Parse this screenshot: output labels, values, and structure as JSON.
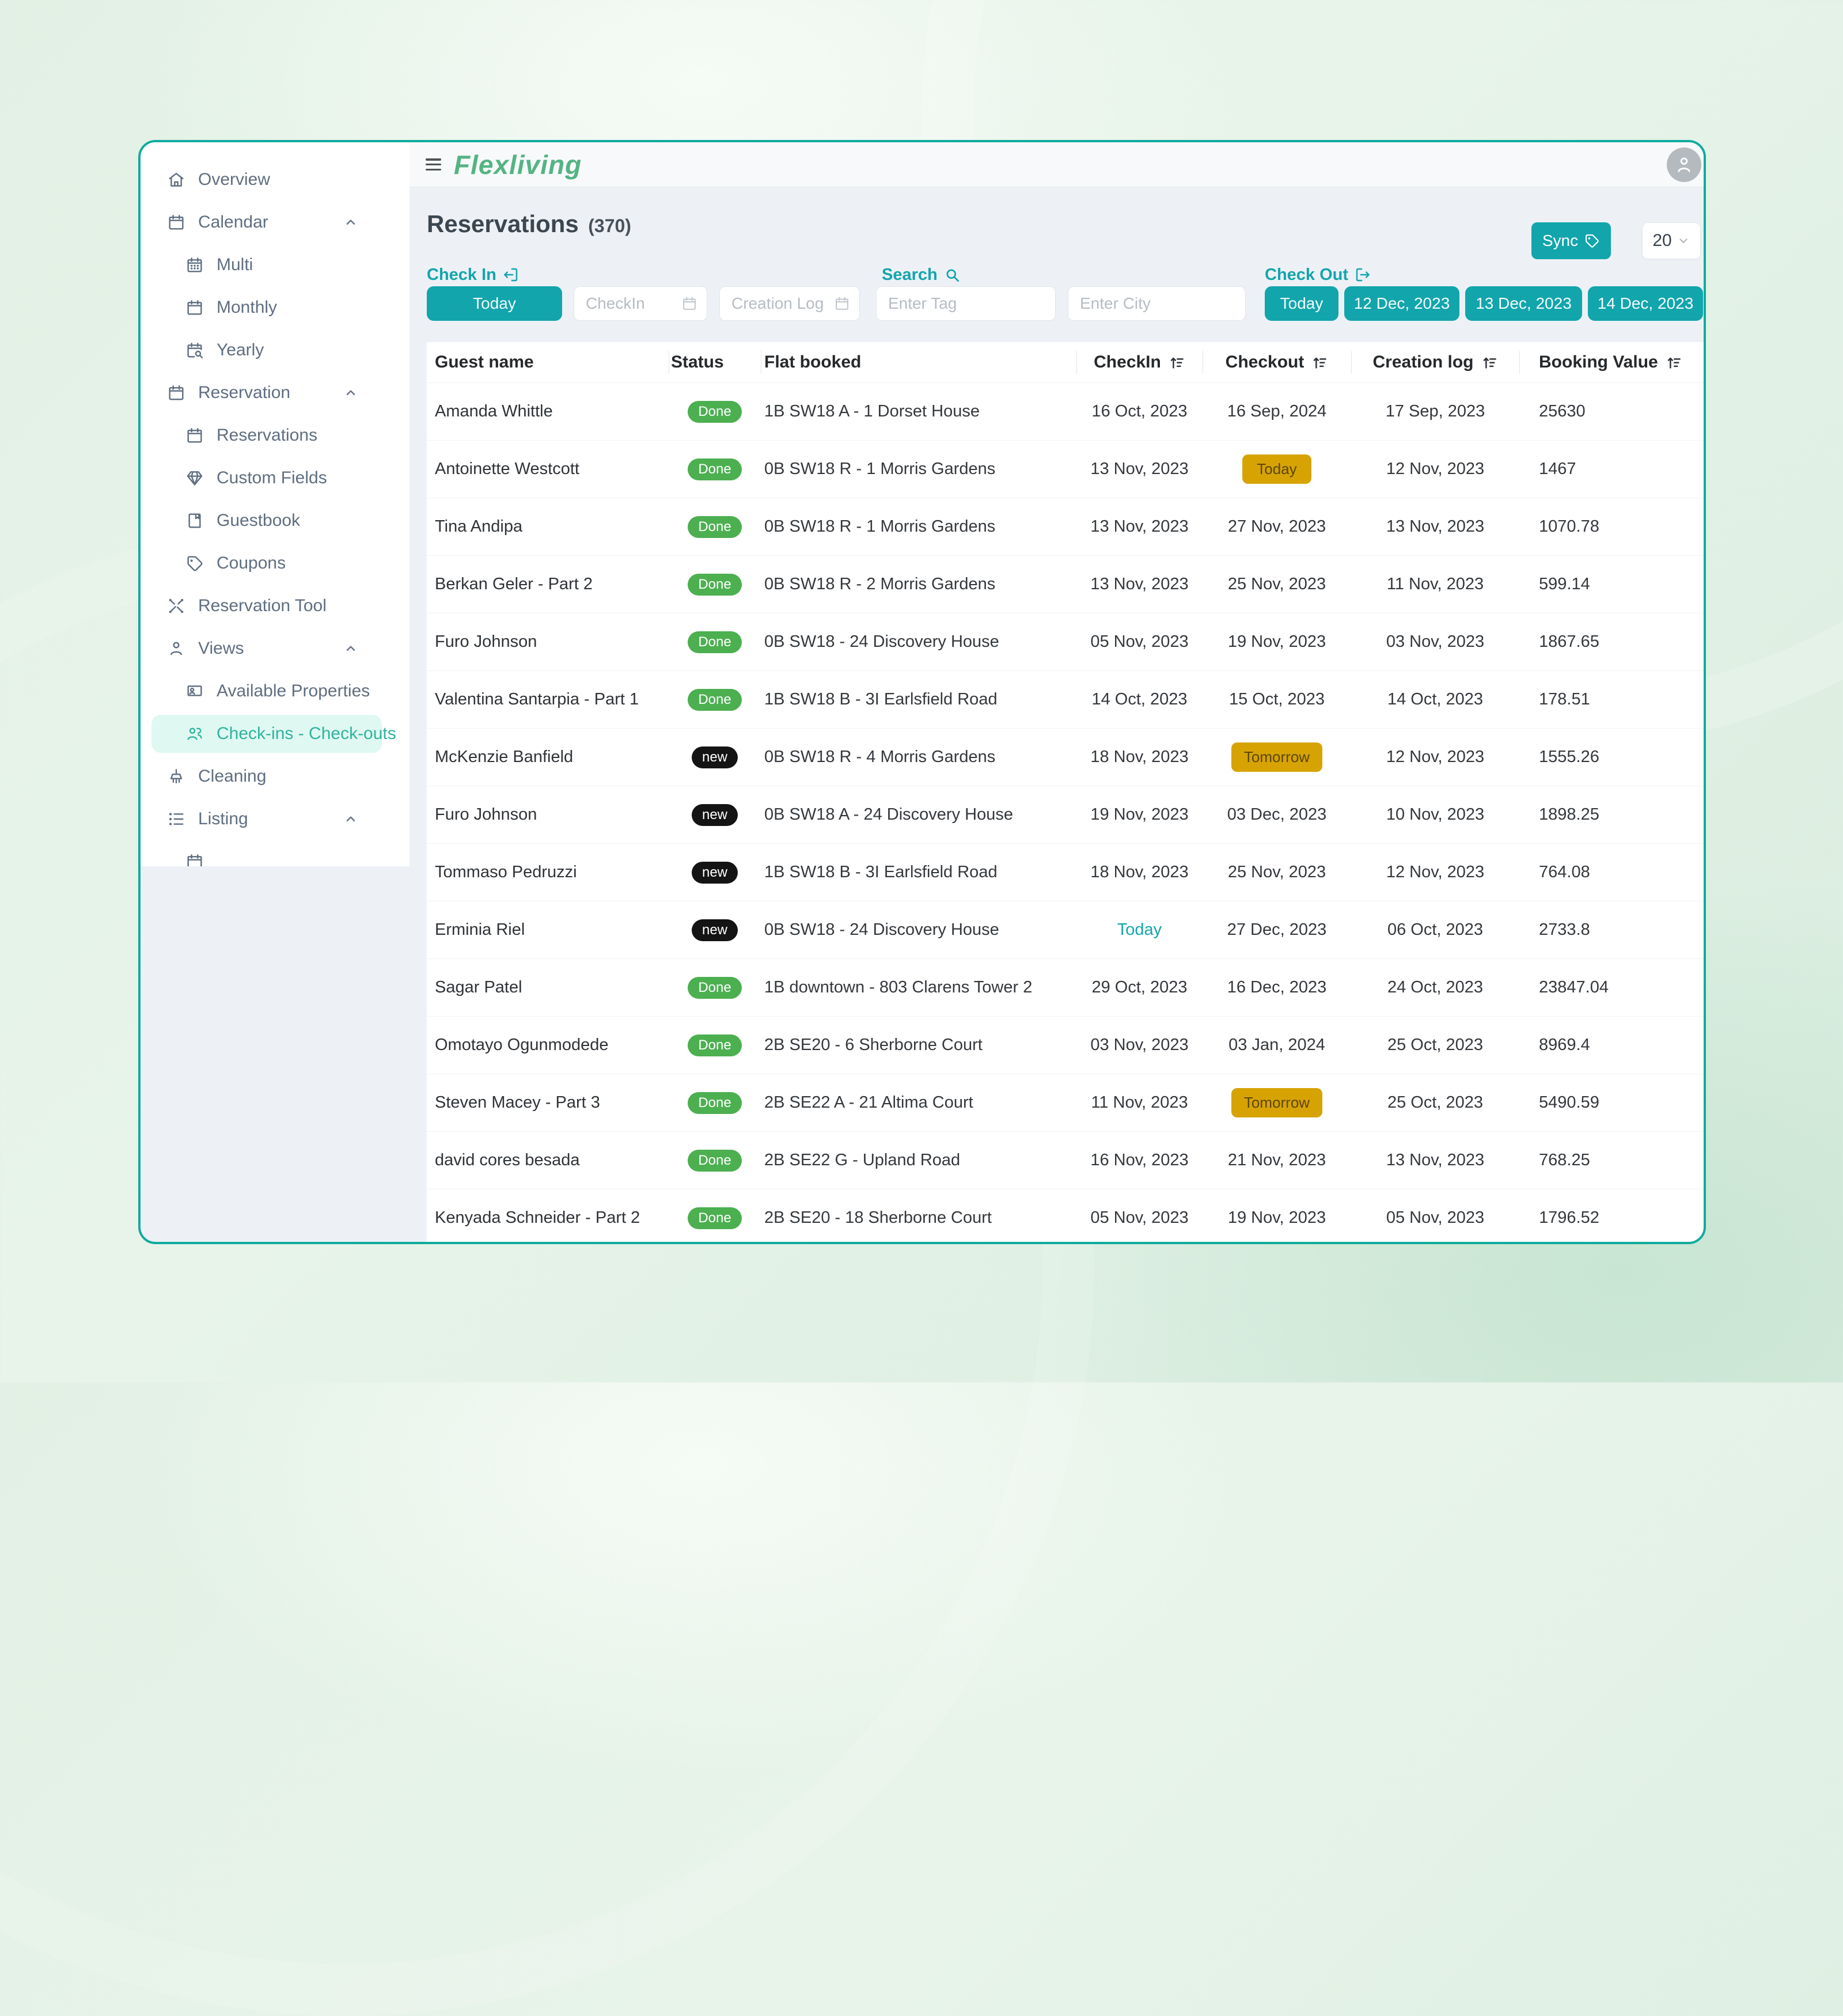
{
  "colors": {
    "accent_teal": "#12a5ac",
    "panel_border_teal": "#10ab9e",
    "logo_green": "#53b483",
    "status_done_green": "#4caf50",
    "status_new_black": "#141414",
    "badge_gold": "#d7a303",
    "active_item_bg": "#e0f8f2"
  },
  "header": {
    "logo": "Flexliving",
    "menu_icon": "hamburger-icon",
    "avatar_icon": "person-icon"
  },
  "sidebar": {
    "items": [
      {
        "label": "Overview",
        "icon": "home",
        "level": 0,
        "chevron": false,
        "active": false
      },
      {
        "label": "Calendar",
        "icon": "calendar",
        "level": 0,
        "chevron": true,
        "active": false
      },
      {
        "label": "Multi",
        "icon": "calendar-multi",
        "level": 1,
        "chevron": false,
        "active": false
      },
      {
        "label": "Monthly",
        "icon": "calendar",
        "level": 1,
        "chevron": false,
        "active": false
      },
      {
        "label": "Yearly",
        "icon": "calendar-search",
        "level": 1,
        "chevron": false,
        "active": false
      },
      {
        "label": "Reservation",
        "icon": "calendar",
        "level": 0,
        "chevron": true,
        "active": false
      },
      {
        "label": "Reservations",
        "icon": "calendar",
        "level": 1,
        "chevron": false,
        "active": false
      },
      {
        "label": "Custom Fields",
        "icon": "gem",
        "level": 1,
        "chevron": false,
        "active": false
      },
      {
        "label": "Guestbook",
        "icon": "book",
        "level": 1,
        "chevron": false,
        "active": false
      },
      {
        "label": "Coupons",
        "icon": "tag",
        "level": 1,
        "chevron": false,
        "active": false
      },
      {
        "label": "Reservation Tool",
        "icon": "tools",
        "level": 0,
        "chevron": false,
        "active": false
      },
      {
        "label": "Views",
        "icon": "user",
        "level": 0,
        "chevron": true,
        "active": false
      },
      {
        "label": "Available Properties",
        "icon": "id-card",
        "level": 1,
        "chevron": false,
        "active": false
      },
      {
        "label": "Check-ins - Check-outs",
        "icon": "users",
        "level": 1,
        "chevron": false,
        "active": true
      },
      {
        "label": "Cleaning",
        "icon": "brush",
        "level": 0,
        "chevron": false,
        "active": false
      },
      {
        "label": "Listing",
        "icon": "list",
        "level": 0,
        "chevron": true,
        "active": false
      },
      {
        "label": "",
        "icon": "calendar",
        "level": 1,
        "chevron": false,
        "active": false
      }
    ]
  },
  "toolbar": {
    "title": "Reservations",
    "count": "(370)",
    "sync_label": "Sync",
    "page_size": "20"
  },
  "filters": {
    "checkin": {
      "label": "Check In",
      "today_button": "Today",
      "checkin_placeholder": "CheckIn",
      "creation_placeholder": "Creation Log"
    },
    "search": {
      "label": "Search",
      "tag_placeholder": "Enter Tag",
      "city_placeholder": "Enter City"
    },
    "checkout": {
      "label": "Check Out",
      "buttons": [
        "Today",
        "12 Dec, 2023",
        "13 Dec, 2023",
        "14 Dec, 2023"
      ]
    }
  },
  "table": {
    "columns": [
      "Guest name",
      "Status",
      "Flat booked",
      "CheckIn",
      "Checkout",
      "Creation log",
      "Booking Value"
    ],
    "sortable": [
      false,
      false,
      false,
      true,
      true,
      true,
      true
    ],
    "rows": [
      {
        "guest": "Amanda Whittle",
        "status": "Done",
        "flat": "1B SW18 A - 1 Dorset House",
        "checkin": "16 Oct, 2023",
        "checkin_today": false,
        "checkout": "16 Sep, 2024",
        "checkout_badge": false,
        "creation": "17 Sep, 2023",
        "value": "25630"
      },
      {
        "guest": "Antoinette Westcott",
        "status": "Done",
        "flat": "0B SW18 R - 1 Morris Gardens",
        "checkin": "13 Nov, 2023",
        "checkin_today": false,
        "checkout": "Today",
        "checkout_badge": true,
        "creation": "12 Nov, 2023",
        "value": "1467"
      },
      {
        "guest": "Tina Andipa",
        "status": "Done",
        "flat": "0B SW18 R - 1 Morris Gardens",
        "checkin": "13 Nov, 2023",
        "checkin_today": false,
        "checkout": "27 Nov, 2023",
        "checkout_badge": false,
        "creation": "13 Nov, 2023",
        "value": "1070.78"
      },
      {
        "guest": "Berkan Geler - Part 2",
        "status": "Done",
        "flat": "0B SW18 R - 2 Morris Gardens",
        "checkin": "13 Nov, 2023",
        "checkin_today": false,
        "checkout": "25 Nov, 2023",
        "checkout_badge": false,
        "creation": "11 Nov, 2023",
        "value": "599.14"
      },
      {
        "guest": "Furo Johnson",
        "status": "Done",
        "flat": "0B SW18 - 24 Discovery House",
        "checkin": "05 Nov, 2023",
        "checkin_today": false,
        "checkout": "19 Nov, 2023",
        "checkout_badge": false,
        "creation": "03 Nov, 2023",
        "value": "1867.65"
      },
      {
        "guest": "Valentina Santarpia - Part 1",
        "status": "Done",
        "flat": "1B SW18 B - 3I Earlsfield Road",
        "checkin": "14 Oct, 2023",
        "checkin_today": false,
        "checkout": "15 Oct, 2023",
        "checkout_badge": false,
        "creation": "14 Oct, 2023",
        "value": "178.51"
      },
      {
        "guest": "McKenzie Banfield",
        "status": "new",
        "flat": "0B SW18 R - 4 Morris Gardens",
        "checkin": "18 Nov, 2023",
        "checkin_today": false,
        "checkout": "Tomorrow",
        "checkout_badge": true,
        "creation": "12 Nov, 2023",
        "value": "1555.26"
      },
      {
        "guest": "Furo Johnson",
        "status": "new",
        "flat": "0B SW18 A - 24 Discovery House",
        "checkin": "19 Nov, 2023",
        "checkin_today": false,
        "checkout": "03 Dec, 2023",
        "checkout_badge": false,
        "creation": "10 Nov, 2023",
        "value": "1898.25"
      },
      {
        "guest": "Tommaso Pedruzzi",
        "status": "new",
        "flat": "1B SW18 B - 3I Earlsfield Road",
        "checkin": "18 Nov, 2023",
        "checkin_today": false,
        "checkout": "25 Nov, 2023",
        "checkout_badge": false,
        "creation": "12 Nov, 2023",
        "value": "764.08"
      },
      {
        "guest": "Erminia Riel",
        "status": "new",
        "flat": "0B SW18 - 24 Discovery House",
        "checkin": "Today",
        "checkin_today": true,
        "checkout": "27 Dec, 2023",
        "checkout_badge": false,
        "creation": "06 Oct, 2023",
        "value": "2733.8"
      },
      {
        "guest": "Sagar Patel",
        "status": "Done",
        "flat": "1B downtown - 803 Clarens Tower 2",
        "checkin": "29 Oct, 2023",
        "checkin_today": false,
        "checkout": "16 Dec, 2023",
        "checkout_badge": false,
        "creation": "24 Oct, 2023",
        "value": "23847.04"
      },
      {
        "guest": "Omotayo Ogunmodede",
        "status": "Done",
        "flat": "2B SE20 - 6 Sherborne Court",
        "checkin": "03 Nov, 2023",
        "checkin_today": false,
        "checkout": "03 Jan, 2024",
        "checkout_badge": false,
        "creation": "25 Oct, 2023",
        "value": "8969.4"
      },
      {
        "guest": "Steven Macey - Part 3",
        "status": "Done",
        "flat": "2B SE22 A - 21 Altima Court",
        "checkin": "11 Nov, 2023",
        "checkin_today": false,
        "checkout": "Tomorrow",
        "checkout_badge": true,
        "creation": "25 Oct, 2023",
        "value": "5490.59"
      },
      {
        "guest": "david cores besada",
        "status": "Done",
        "flat": "2B SE22 G - Upland Road",
        "checkin": "16 Nov, 2023",
        "checkin_today": false,
        "checkout": "21 Nov, 2023",
        "checkout_badge": false,
        "creation": "13 Nov, 2023",
        "value": "768.25"
      },
      {
        "guest": "Kenyada Schneider - Part 2",
        "status": "Done",
        "flat": "2B SE20 - 18 Sherborne Court",
        "checkin": "05 Nov, 2023",
        "checkin_today": false,
        "checkout": "19 Nov, 2023",
        "checkout_badge": false,
        "creation": "05 Nov, 2023",
        "value": "1796.52"
      }
    ]
  }
}
